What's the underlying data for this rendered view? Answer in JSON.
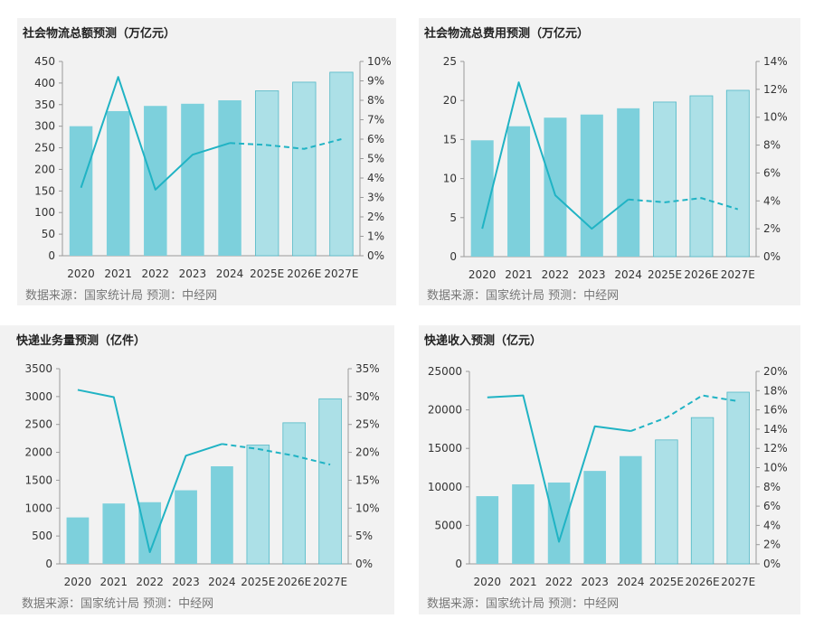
{
  "source_note": "数据来源：国家统计局  预测：中经网",
  "colors": {
    "bar_actual": "#7dd0dc",
    "bar_forecast": "#ace0e7",
    "bar_forecast_stroke": "#52b8c6",
    "line": "#20b3c4",
    "panel_bg": "#f2f2f2"
  },
  "chart_data": [
    {
      "type": "bar",
      "title": "社会物流总额预测（万亿元）",
      "categories": [
        "2020",
        "2021",
        "2022",
        "2023",
        "2024",
        "2025E",
        "2026E",
        "2027E"
      ],
      "forecast_start_index": 5,
      "bar_values": [
        300,
        335,
        347,
        352,
        360,
        382,
        402,
        425
      ],
      "line_values": [
        3.5,
        9.2,
        3.4,
        5.2,
        5.8,
        5.7,
        5.5,
        6.0
      ],
      "left_axis": {
        "ylim": [
          0,
          450
        ],
        "ticks": [
          "0",
          "50",
          "100",
          "150",
          "200",
          "250",
          "300",
          "350",
          "400",
          "450"
        ]
      },
      "right_axis": {
        "ylim": [
          0,
          10
        ],
        "ticks": [
          "0%",
          "1%",
          "2%",
          "3%",
          "4%",
          "5%",
          "6%",
          "7%",
          "8%",
          "9%",
          "10%"
        ]
      },
      "grid": false,
      "legend": "none"
    },
    {
      "type": "bar",
      "title": "社会物流总费用预测（万亿元）",
      "categories": [
        "2020",
        "2021",
        "2022",
        "2023",
        "2024",
        "2025E",
        "2026E",
        "2027E"
      ],
      "forecast_start_index": 5,
      "bar_values": [
        14.9,
        16.7,
        17.8,
        18.2,
        19.0,
        19.8,
        20.6,
        21.3
      ],
      "line_values": [
        2.0,
        12.5,
        4.4,
        2.0,
        4.1,
        3.9,
        4.2,
        3.4
      ],
      "left_axis": {
        "ylim": [
          0,
          25
        ],
        "ticks": [
          "0",
          "5",
          "10",
          "15",
          "20",
          "25"
        ]
      },
      "right_axis": {
        "ylim": [
          0,
          14
        ],
        "ticks": [
          "0%",
          "2%",
          "4%",
          "6%",
          "8%",
          "10%",
          "12%",
          "14%"
        ]
      },
      "grid": false,
      "legend": "none"
    },
    {
      "type": "bar",
      "title": "快递业务量预测（亿件）",
      "categories": [
        "2020",
        "2021",
        "2022",
        "2023",
        "2024",
        "2025E",
        "2026E",
        "2027E"
      ],
      "forecast_start_index": 5,
      "bar_values": [
        833,
        1083,
        1106,
        1320,
        1750,
        2130,
        2530,
        2960
      ],
      "line_values": [
        31.2,
        29.9,
        2.1,
        19.4,
        21.5,
        20.6,
        19.4,
        17.8
      ],
      "left_axis": {
        "ylim": [
          0,
          3500
        ],
        "ticks": [
          "0",
          "500",
          "1000",
          "1500",
          "2000",
          "2500",
          "3000",
          "3500"
        ]
      },
      "right_axis": {
        "ylim": [
          0,
          35
        ],
        "ticks": [
          "0%",
          "5%",
          "10%",
          "15%",
          "20%",
          "25%",
          "30%",
          "35%"
        ]
      },
      "grid": false,
      "legend": "none"
    },
    {
      "type": "bar",
      "title": "快递收入预测（亿元）",
      "categories": [
        "2020",
        "2021",
        "2022",
        "2023",
        "2024",
        "2025E",
        "2026E",
        "2027E"
      ],
      "forecast_start_index": 5,
      "bar_values": [
        8795,
        10332,
        10567,
        12074,
        14000,
        16100,
        19000,
        22300
      ],
      "line_values": [
        17.3,
        17.5,
        2.3,
        14.3,
        13.8,
        15.2,
        17.5,
        16.9
      ],
      "left_axis": {
        "ylim": [
          0,
          25000
        ],
        "ticks": [
          "0",
          "5000",
          "10000",
          "15000",
          "20000",
          "25000"
        ]
      },
      "right_axis": {
        "ylim": [
          0,
          20
        ],
        "ticks": [
          "0%",
          "2%",
          "4%",
          "6%",
          "8%",
          "10%",
          "12%",
          "14%",
          "16%",
          "18%",
          "20%"
        ]
      },
      "grid": false,
      "legend": "none"
    }
  ]
}
